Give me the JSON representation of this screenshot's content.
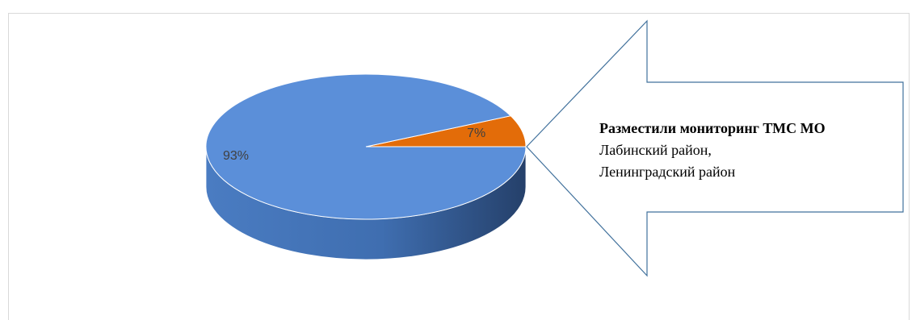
{
  "chart_data": {
    "type": "pie",
    "style": "3d",
    "categories": [
      "",
      ""
    ],
    "values": [
      93,
      7
    ],
    "labels": [
      "93%",
      "7%"
    ],
    "colors": [
      "#5b8fd9",
      "#e36c09"
    ],
    "title": "",
    "legend": "none"
  },
  "callout": {
    "title": "Разместили мониторинг ТМС МО",
    "lines": [
      "Лабинский район,",
      "Ленинградский район"
    ]
  },
  "colors": {
    "pie_side": "#3d6aa8",
    "slice_side": "#a84f08",
    "arrow_stroke": "#41719c",
    "frame": "#d9d9d9"
  }
}
